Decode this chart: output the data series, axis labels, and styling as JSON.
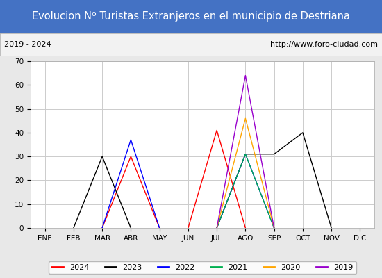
{
  "title": "Evolucion Nº Turistas Extranjeros en el municipio de Destriana",
  "subtitle_left": "2019 - 2024",
  "subtitle_right": "http://www.foro-ciudad.com",
  "title_bg_color": "#4472c4",
  "title_text_color": "#ffffff",
  "subtitle_bg_color": "#f2f2f2",
  "subtitle_text_color": "#000000",
  "months": [
    "ENE",
    "FEB",
    "MAR",
    "ABR",
    "MAY",
    "JUN",
    "JUL",
    "AGO",
    "SEP",
    "OCT",
    "NOV",
    "DIC"
  ],
  "ylim": [
    0,
    70
  ],
  "yticks": [
    0,
    10,
    20,
    30,
    40,
    50,
    60,
    70
  ],
  "series": {
    "2024": {
      "color": "#ff0000",
      "values": [
        0,
        0,
        0,
        30,
        0,
        0,
        41,
        0,
        0,
        0,
        0,
        0
      ]
    },
    "2023": {
      "color": "#000000",
      "values": [
        0,
        0,
        30,
        0,
        0,
        0,
        0,
        31,
        31,
        40,
        0,
        0
      ]
    },
    "2022": {
      "color": "#0000ff",
      "values": [
        0,
        0,
        0,
        37,
        0,
        0,
        0,
        31,
        0,
        0,
        0,
        0
      ]
    },
    "2021": {
      "color": "#00b050",
      "values": [
        0,
        0,
        0,
        0,
        0,
        0,
        0,
        31,
        0,
        0,
        0,
        0
      ]
    },
    "2020": {
      "color": "#ffa500",
      "values": [
        0,
        0,
        0,
        0,
        0,
        0,
        0,
        46,
        0,
        0,
        0,
        0
      ]
    },
    "2019": {
      "color": "#9900cc",
      "values": [
        0,
        0,
        0,
        0,
        0,
        0,
        0,
        64,
        0,
        0,
        0,
        0
      ]
    }
  },
  "legend_order": [
    "2024",
    "2023",
    "2022",
    "2021",
    "2020",
    "2019"
  ],
  "grid_color": "#cccccc",
  "plot_bg_color": "#ffffff",
  "outer_bg_color": "#e8e8e8"
}
